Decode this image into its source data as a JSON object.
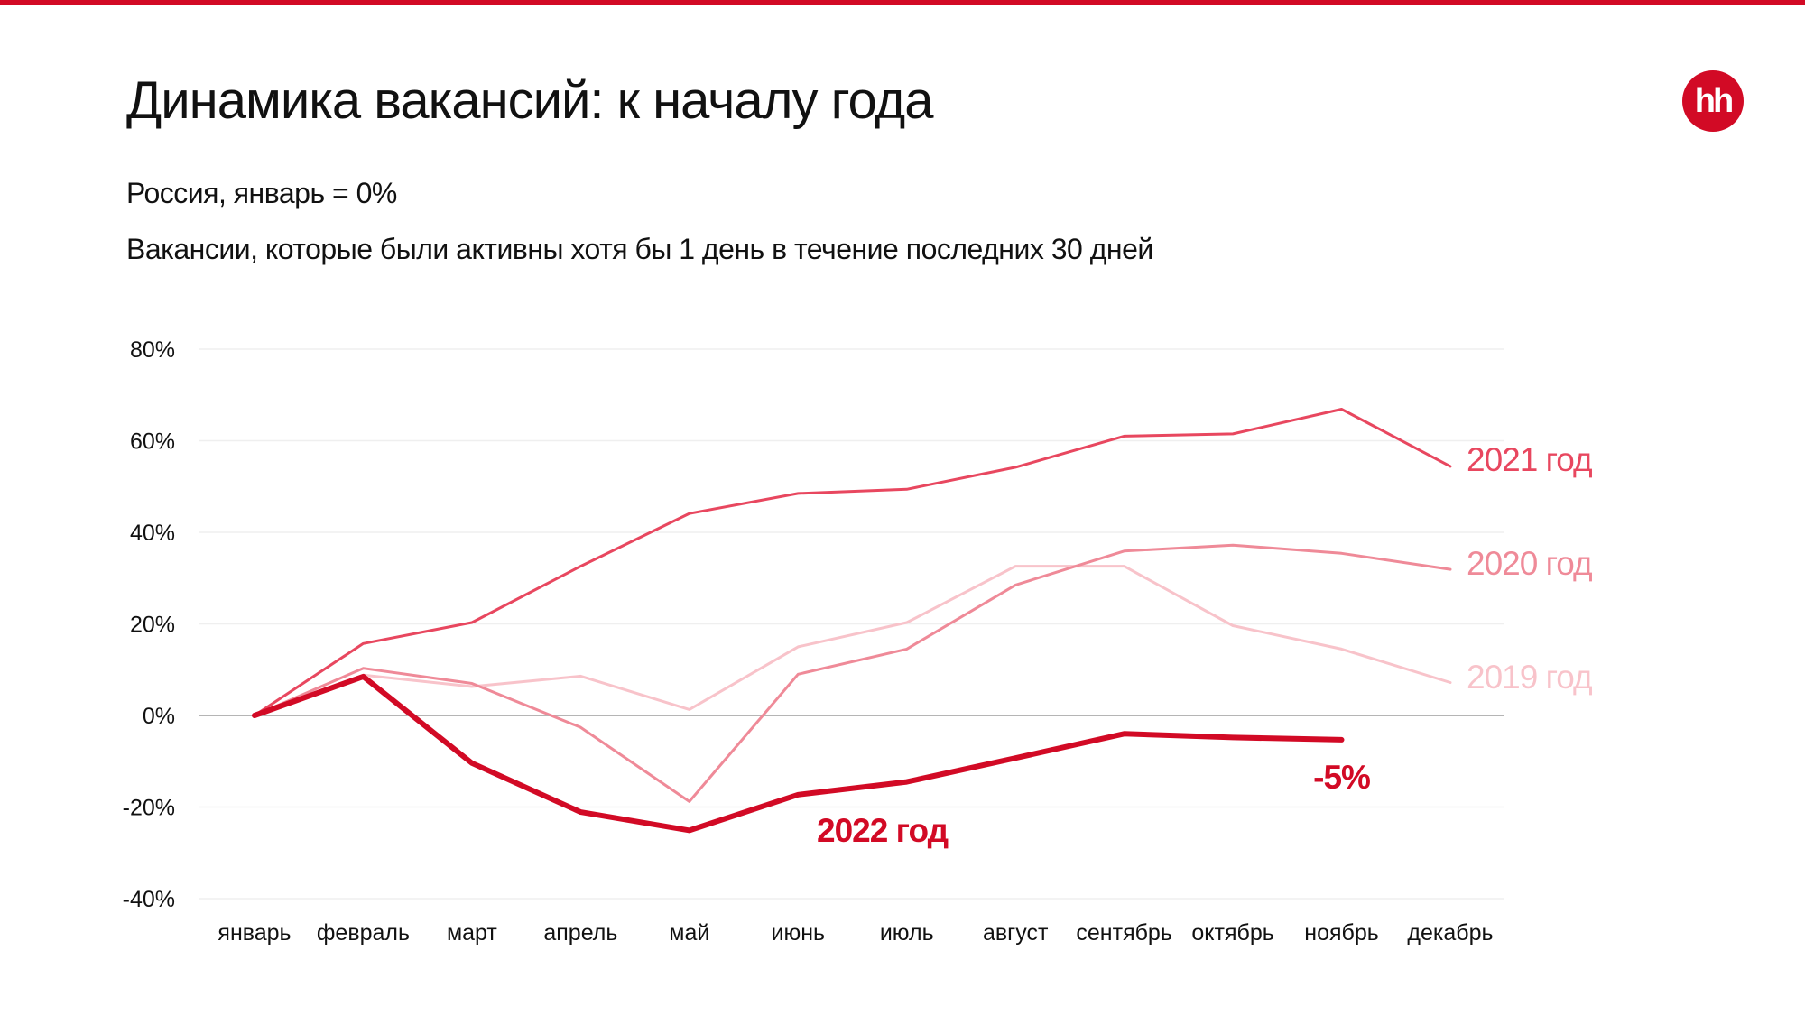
{
  "header": {
    "title": "Динамика вакансий: к началу года",
    "subtitle1": "Россия, январь = 0%",
    "subtitle2": "Вакансии, которые были активны хотя бы 1 день в течение последних 30 дней",
    "logo_text": "hh"
  },
  "chart_data": {
    "type": "line",
    "title": "Динамика вакансий: к началу года",
    "xlabel": "",
    "ylabel": "",
    "ylim": [
      -40,
      80
    ],
    "yticks": [
      80,
      60,
      40,
      20,
      0,
      -20,
      -40
    ],
    "ytick_labels": [
      "80%",
      "60%",
      "40%",
      "20%",
      "0%",
      "-20%",
      "-40%"
    ],
    "grid": true,
    "categories": [
      "январь",
      "февраль",
      "март",
      "апрель",
      "май",
      "июнь",
      "июль",
      "август",
      "сентябрь",
      "октябрь",
      "ноябрь",
      "декабрь"
    ],
    "series": [
      {
        "name": "2019 год",
        "color": "#f8c3ca",
        "width": 3,
        "values": [
          0,
          8.8,
          6.3,
          8.6,
          1.3,
          15,
          20.3,
          32.6,
          32.6,
          19.6,
          14.5,
          7.2
        ]
      },
      {
        "name": "2020 год",
        "color": "#ef8a98",
        "width": 3,
        "values": [
          0,
          10.3,
          7,
          -2.6,
          -18.8,
          9,
          14.5,
          28.5,
          35.9,
          37.2,
          35.4,
          31.9
        ]
      },
      {
        "name": "2021 год",
        "color": "#e8475f",
        "width": 3,
        "values": [
          0,
          15.7,
          20.3,
          32.6,
          44.1,
          48.5,
          49.4,
          54.2,
          61,
          61.5,
          66.9,
          54.4
        ]
      },
      {
        "name": "2022 год",
        "color": "#d20a25",
        "width": 6,
        "values": [
          0,
          8.5,
          -10.4,
          -21.1,
          -25.1,
          -17.3,
          -14.5,
          -9.3,
          -4.0,
          -4.8,
          -5.3,
          null
        ]
      }
    ],
    "annotations": [
      {
        "text": "-5%",
        "series": "2022 год",
        "category": "ноябрь"
      }
    ]
  }
}
